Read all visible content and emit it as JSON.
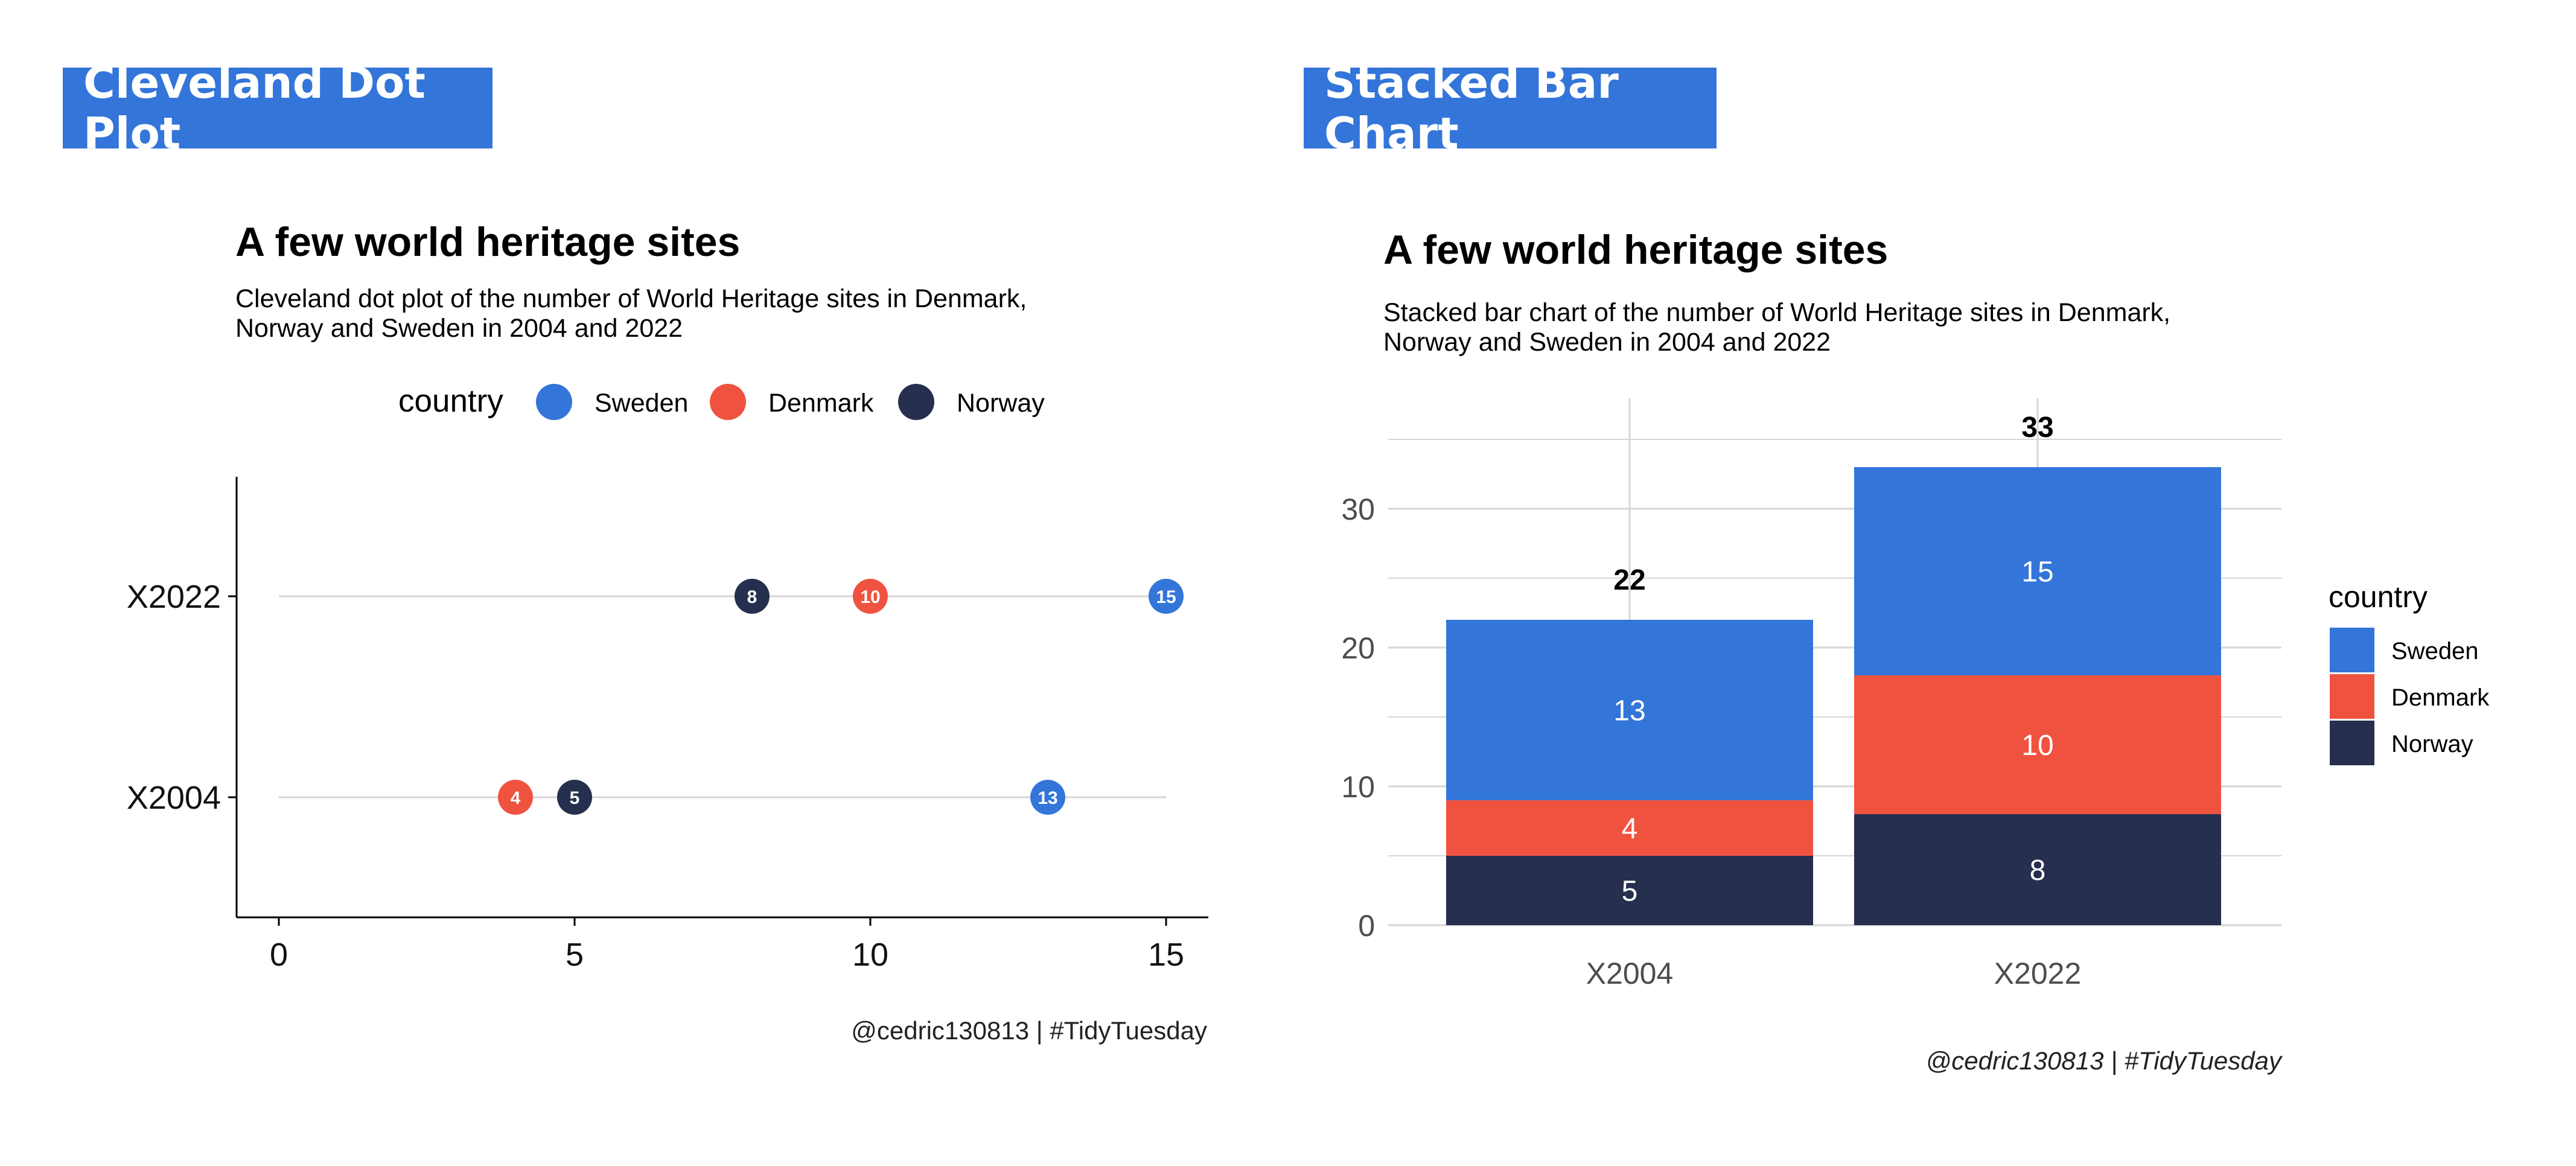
{
  "banners": {
    "left": "Cleveland Dot Plot",
    "right": "Stacked Bar Chart"
  },
  "colors": {
    "Sweden": "#3375d9",
    "Denmark": "#ef5340",
    "Norway": "#262f4e",
    "banner": "#3375d9",
    "grid": "#d6d6d6"
  },
  "chart_data": [
    {
      "type": "scatter",
      "title": "A few world heritage sites",
      "subtitle": [
        "Cleveland dot plot of the number of World Heritage sites in Denmark,",
        "Norway and Sweden in 2004 and 2022"
      ],
      "caption": "@cedric130813 | #TidyTuesday",
      "legend_title": "country",
      "legend_position": "top",
      "categories": [
        "X2004",
        "X2022"
      ],
      "series": [
        {
          "name": "Sweden",
          "values": [
            13,
            15
          ]
        },
        {
          "name": "Denmark",
          "values": [
            4,
            10
          ]
        },
        {
          "name": "Norway",
          "values": [
            5,
            8
          ]
        }
      ],
      "xlim": [
        0,
        15
      ],
      "xticks": [
        "0",
        "5",
        "10",
        "15"
      ],
      "grid": false
    },
    {
      "type": "bar",
      "stacked": true,
      "title": "A few world heritage sites",
      "subtitle": [
        "Stacked bar chart of the number of World Heritage sites in Denmark,",
        "Norway and Sweden in 2004 and 2022"
      ],
      "caption": "@cedric130813 | #TidyTuesday",
      "legend_title": "country",
      "legend_position": "right",
      "categories": [
        "X2004",
        "X2022"
      ],
      "series": [
        {
          "name": "Sweden",
          "values": [
            13,
            15
          ]
        },
        {
          "name": "Denmark",
          "values": [
            4,
            10
          ]
        },
        {
          "name": "Norway",
          "values": [
            5,
            8
          ]
        }
      ],
      "totals": [
        22,
        33
      ],
      "ylim": [
        0,
        35
      ],
      "yticks": [
        "0",
        "10",
        "20",
        "30"
      ],
      "grid": true
    }
  ]
}
